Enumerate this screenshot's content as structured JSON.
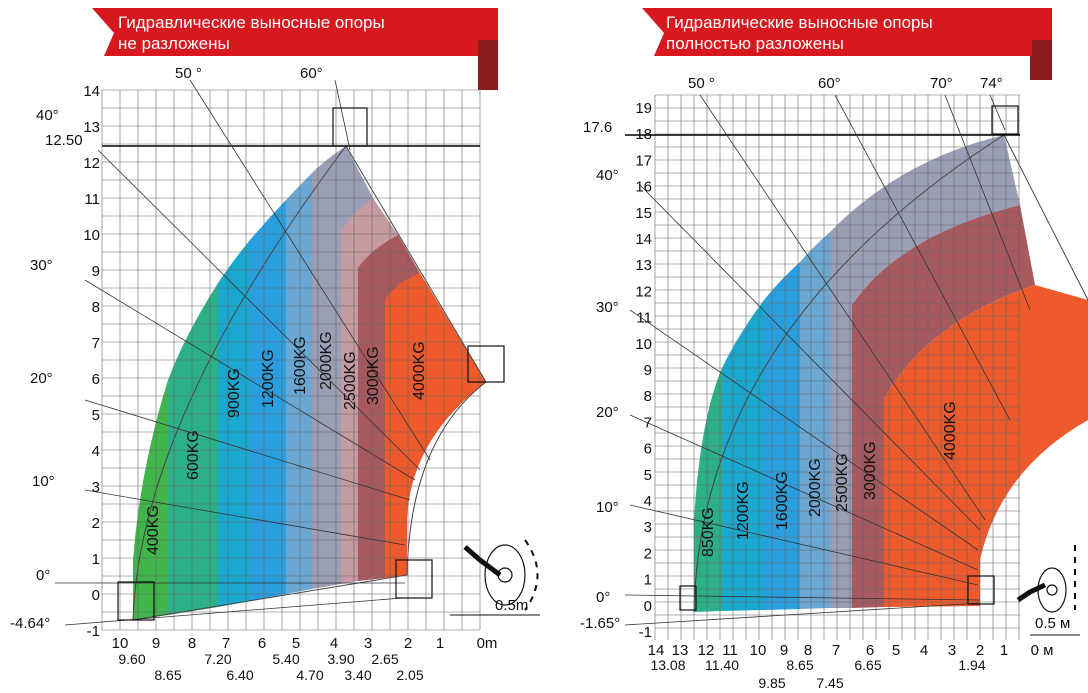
{
  "left": {
    "title_line1": "Гидравлические выносные опоры",
    "title_line2": "не разложены",
    "y_labels": [
      "-1",
      "0",
      "1",
      "2",
      "3",
      "4",
      "5",
      "6",
      "7",
      "8",
      "9",
      "10",
      "11",
      "12",
      "13",
      "14"
    ],
    "x_labels_top": [
      "10",
      "9",
      "8",
      "7",
      "6",
      "5",
      "4",
      "3",
      "2",
      "1",
      "0m"
    ],
    "x_labels_bottom": [
      "9.60",
      "8.65",
      "7.20",
      "6.40",
      "5.40",
      "4.70",
      "3.90",
      "3.40",
      "2.65",
      "2.05"
    ],
    "angles": [
      "50 °",
      "60°",
      "40°",
      "30°",
      "20°",
      "10°",
      "0°",
      "-4.64°"
    ],
    "max_height": "12.50",
    "scale_label": "0.5m",
    "zones": [
      {
        "label": "400KG",
        "color": "#3fb54a"
      },
      {
        "label": "600KG",
        "color": "#2bb08a"
      },
      {
        "label": "900KG",
        "color": "#19a8cf"
      },
      {
        "label": "1200KG",
        "color": "#2a9fe0"
      },
      {
        "label": "1600KG",
        "color": "#6aa7d2"
      },
      {
        "label": "2000KG",
        "color": "#9b9fb6"
      },
      {
        "label": "2500KG",
        "color": "#c59aa1"
      },
      {
        "label": "3000KG",
        "color": "#a7595e"
      },
      {
        "label": "4000KG",
        "color": "#ee5a2c"
      }
    ]
  },
  "right": {
    "title_line1": "Гидравлические выносные опоры",
    "title_line2": "полностью разложены",
    "y_labels": [
      "-1",
      "0",
      "1",
      "2",
      "3",
      "4",
      "5",
      "6",
      "7",
      "8",
      "9",
      "10",
      "11",
      "12",
      "13",
      "14",
      "15",
      "16",
      "17",
      "18",
      "19"
    ],
    "x_labels_top": [
      "14",
      "13",
      "12",
      "11",
      "10",
      "9",
      "8",
      "7",
      "6",
      "5",
      "4",
      "3",
      "2",
      "1",
      "0 м"
    ],
    "x_labels_bottom": [
      "13.08",
      "11.40",
      "9.85",
      "8.65",
      "7.45",
      "6.65",
      "1.94"
    ],
    "angles": [
      "50 °",
      "60°",
      "70°",
      "74°",
      "40°",
      "30°",
      "20°",
      "10°",
      "0°",
      "-1.65°"
    ],
    "max_height": "17.6",
    "scale_label": "0.5 м",
    "zones": [
      {
        "label": "850KG",
        "color": "#2bb08a"
      },
      {
        "label": "1200KG",
        "color": "#19a8cf"
      },
      {
        "label": "1600KG",
        "color": "#2a9fe0"
      },
      {
        "label": "2000KG",
        "color": "#6aa7d2"
      },
      {
        "label": "2500KG",
        "color": "#9b9fb6"
      },
      {
        "label": "3000KG",
        "color": "#a7595e"
      },
      {
        "label": "4000KG",
        "color": "#ee5a2c"
      }
    ]
  },
  "colors": {
    "banner": "#d7191f",
    "banner_shadow": "#8a1a1e",
    "grid": "#555555"
  }
}
